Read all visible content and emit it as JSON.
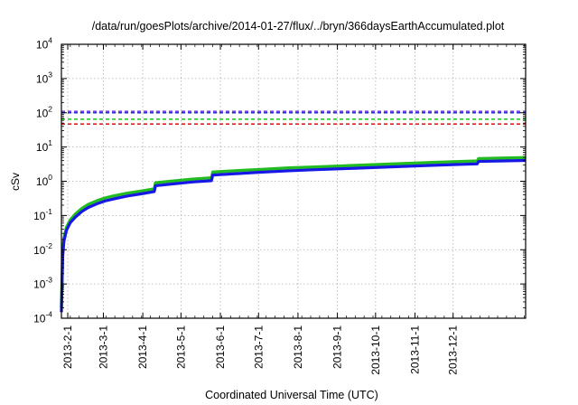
{
  "chart_data": {
    "type": "line",
    "title": "/data/run/goesPlots/archive/2014-01-27/flux/../bryn/366daysEarthAccumulated.plot",
    "xlabel": "Coordinated Universal Time (UTC)",
    "ylabel": "cSv",
    "y_scale": "log",
    "ylim": [
      0.0001,
      10000
    ],
    "y_ticks": [
      {
        "value": 0.0001,
        "base": "10",
        "exp": "-4"
      },
      {
        "value": 0.001,
        "base": "10",
        "exp": "-3"
      },
      {
        "value": 0.01,
        "base": "10",
        "exp": "-2"
      },
      {
        "value": 0.1,
        "base": "10",
        "exp": "-1"
      },
      {
        "value": 1,
        "base": "10",
        "exp": "0"
      },
      {
        "value": 10,
        "base": "10",
        "exp": "1"
      },
      {
        "value": 100,
        "base": "10",
        "exp": "2"
      },
      {
        "value": 1000,
        "base": "10",
        "exp": "3"
      },
      {
        "value": 10000,
        "base": "10",
        "exp": "4"
      }
    ],
    "xlim": [
      "2013-01-27",
      "2014-01-27"
    ],
    "x_ticks": [
      "2013-2-1",
      "2013-3-1",
      "2013-4-1",
      "2013-5-1",
      "2013-6-1",
      "2013-7-1",
      "2013-8-1",
      "2013-9-1",
      "2013-10-1",
      "2013-11-1",
      "2013-12-1"
    ],
    "x_tick_dates": [
      "2013-02-01",
      "2013-03-01",
      "2013-04-01",
      "2013-05-01",
      "2013-06-01",
      "2013-07-01",
      "2013-08-01",
      "2013-09-01",
      "2013-10-01",
      "2013-11-01",
      "2013-12-01"
    ],
    "grid": true,
    "grid_style": "dotted",
    "reference_lines": [
      {
        "value": 110,
        "color": "#7b3fe4"
      },
      {
        "value": 100,
        "color": "#2b2bdc"
      },
      {
        "value": 65,
        "color": "#22cc22"
      },
      {
        "value": 47,
        "color": "#e02020"
      }
    ],
    "series": [
      {
        "color": "#22bb22",
        "points": [
          [
            "2013-01-27",
            0.0002
          ],
          [
            "2013-01-28",
            0.008
          ],
          [
            "2013-01-29",
            0.022
          ],
          [
            "2013-01-31",
            0.045
          ],
          [
            "2013-02-03",
            0.075
          ],
          [
            "2013-02-07",
            0.11
          ],
          [
            "2013-02-12",
            0.16
          ],
          [
            "2013-02-17",
            0.21
          ],
          [
            "2013-02-24",
            0.27
          ],
          [
            "2013-03-03",
            0.33
          ],
          [
            "2013-03-10",
            0.38
          ],
          [
            "2013-03-20",
            0.45
          ],
          [
            "2013-03-31",
            0.52
          ],
          [
            "2013-04-10",
            0.6
          ],
          [
            "2013-04-11",
            0.9
          ],
          [
            "2013-04-25",
            1.02
          ],
          [
            "2013-05-10",
            1.15
          ],
          [
            "2013-05-25",
            1.26
          ],
          [
            "2013-05-26",
            1.85
          ],
          [
            "2013-06-15",
            2.05
          ],
          [
            "2013-07-01",
            2.2
          ],
          [
            "2013-07-25",
            2.45
          ],
          [
            "2013-08-15",
            2.62
          ],
          [
            "2013-09-15",
            2.9
          ],
          [
            "2013-10-15",
            3.2
          ],
          [
            "2013-11-15",
            3.55
          ],
          [
            "2013-12-20",
            3.9
          ],
          [
            "2013-12-21",
            4.6
          ],
          [
            "2014-01-10",
            4.75
          ],
          [
            "2014-01-27",
            4.9
          ]
        ]
      },
      {
        "color": "#1818e6",
        "points": [
          [
            "2013-01-27",
            0.00015
          ],
          [
            "2013-01-28",
            0.0065
          ],
          [
            "2013-01-29",
            0.018
          ],
          [
            "2013-01-31",
            0.037
          ],
          [
            "2013-02-03",
            0.062
          ],
          [
            "2013-02-07",
            0.09
          ],
          [
            "2013-02-12",
            0.13
          ],
          [
            "2013-02-17",
            0.17
          ],
          [
            "2013-02-24",
            0.22
          ],
          [
            "2013-03-03",
            0.27
          ],
          [
            "2013-03-10",
            0.31
          ],
          [
            "2013-03-20",
            0.37
          ],
          [
            "2013-03-31",
            0.43
          ],
          [
            "2013-04-10",
            0.5
          ],
          [
            "2013-04-11",
            0.74
          ],
          [
            "2013-04-25",
            0.84
          ],
          [
            "2013-05-10",
            0.95
          ],
          [
            "2013-05-25",
            1.04
          ],
          [
            "2013-05-26",
            1.52
          ],
          [
            "2013-06-15",
            1.68
          ],
          [
            "2013-07-01",
            1.82
          ],
          [
            "2013-07-25",
            2.02
          ],
          [
            "2013-08-15",
            2.18
          ],
          [
            "2013-09-15",
            2.4
          ],
          [
            "2013-10-15",
            2.65
          ],
          [
            "2013-11-15",
            2.92
          ],
          [
            "2013-12-20",
            3.22
          ],
          [
            "2013-12-21",
            3.8
          ],
          [
            "2014-01-10",
            3.92
          ],
          [
            "2014-01-27",
            4.05
          ]
        ]
      }
    ]
  }
}
